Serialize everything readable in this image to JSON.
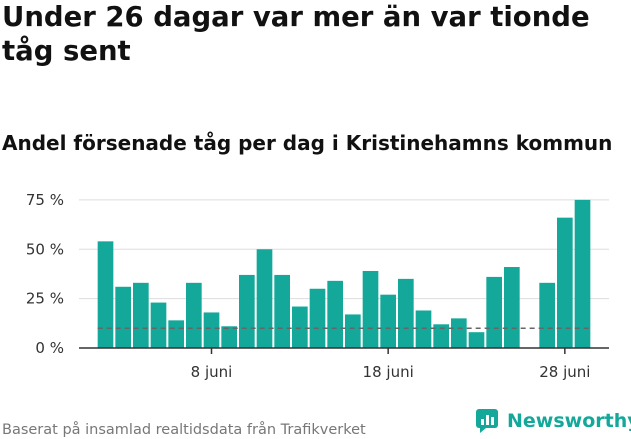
{
  "title": "Under 26 dagar var mer än var tionde tåg sent",
  "subtitle": "Andel försenade tåg per dag i Kristinehamns kommun",
  "source": "Baserat på insamlad realtidsdata från Trafikverket",
  "brand": {
    "name": "Newsworthy",
    "icon": "newsworthy-logo-icon"
  },
  "colors": {
    "bar": "#14a89a",
    "reference_line": "#666666",
    "grid": "#dddddd",
    "axis": "#333333"
  },
  "chart_data": {
    "type": "bar",
    "title": "Under 26 dagar var mer än var tionde tåg sent",
    "subtitle": "Andel försenade tåg per dag i Kristinehamns kommun",
    "xlabel": "",
    "ylabel": "",
    "unit": "%",
    "ylim": [
      0,
      80
    ],
    "yticks": [
      0,
      25,
      50,
      75
    ],
    "ytick_labels": [
      "0 %",
      "25 %",
      "50 %",
      "75 %"
    ],
    "grid": true,
    "reference_line": 10,
    "x_first_day": 1,
    "x_last_day": 30,
    "xticks": [
      8,
      18,
      28
    ],
    "xtick_labels": [
      "8 juni",
      "18 juni",
      "28 juni"
    ],
    "days": [
      1,
      2,
      3,
      4,
      5,
      6,
      7,
      8,
      9,
      10,
      11,
      12,
      13,
      14,
      15,
      16,
      17,
      18,
      19,
      20,
      21,
      22,
      23,
      24,
      25,
      26,
      27,
      28,
      29,
      30
    ],
    "values": [
      null,
      54,
      31,
      33,
      23,
      14,
      33,
      18,
      11,
      37,
      50,
      37,
      21,
      30,
      34,
      17,
      39,
      27,
      35,
      19,
      12,
      15,
      8,
      36,
      41,
      null,
      33,
      66,
      75,
      null
    ]
  }
}
